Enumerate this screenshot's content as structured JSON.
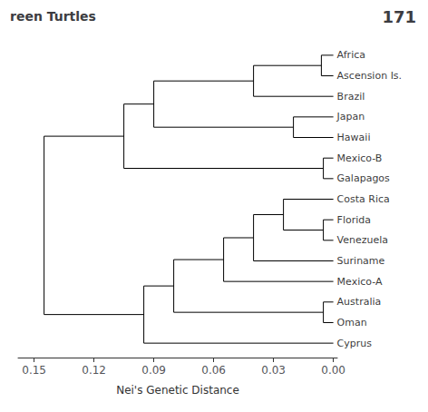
{
  "chart_data": {
    "type": "dendrogram",
    "title": "reen Turtles",
    "annotations": [
      {
        "text": "171"
      }
    ],
    "xlabel": "Nei's Genetic Distance",
    "color": "#000000",
    "grid": false,
    "xlim": [
      0.158,
      -0.002
    ],
    "xticks": [
      0.15,
      0.12,
      0.09,
      0.06,
      0.03,
      {
        "value": 0,
        "label": "0.00"
      }
    ],
    "tree": {
      "height": 0.145,
      "children": [
        {
          "height": 0.105,
          "children": [
            {
              "height": 0.09,
              "children": [
                {
                  "height": 0.04,
                  "children": [
                    {
                      "height": 0.006,
                      "children": [
                        {
                          "name": "Africa",
                          "height": 0
                        },
                        {
                          "name": "Ascension Is.",
                          "height": 0
                        }
                      ]
                    },
                    {
                      "name": "Brazil",
                      "height": 0
                    }
                  ]
                },
                {
                  "height": 0.02,
                  "children": [
                    {
                      "name": "Japan",
                      "height": 0
                    },
                    {
                      "name": "Hawaii",
                      "height": 0
                    }
                  ]
                }
              ]
            },
            {
              "height": 0.005,
              "children": [
                {
                  "name": "Mexico-B",
                  "height": 0
                },
                {
                  "name": "Galapagos",
                  "height": 0
                }
              ]
            }
          ]
        },
        {
          "height": 0.095,
          "children": [
            {
              "height": 0.08,
              "children": [
                {
                  "height": 0.055,
                  "children": [
                    {
                      "height": 0.04,
                      "children": [
                        {
                          "height": 0.025,
                          "children": [
                            {
                              "name": "Costa Rica",
                              "height": 0
                            },
                            {
                              "height": 0.005,
                              "children": [
                                {
                                  "name": "Florida",
                                  "height": 0
                                },
                                {
                                  "name": "Venezuela",
                                  "height": 0
                                }
                              ]
                            }
                          ]
                        },
                        {
                          "name": "Suriname",
                          "height": 0
                        }
                      ]
                    },
                    {
                      "name": "Mexico-A",
                      "height": 0
                    }
                  ]
                },
                {
                  "height": 0.005,
                  "children": [
                    {
                      "name": "Australia",
                      "height": 0
                    },
                    {
                      "name": "Oman",
                      "height": 0
                    }
                  ]
                }
              ]
            },
            {
              "name": "Cyprus",
              "height": 0
            }
          ]
        }
      ]
    }
  }
}
